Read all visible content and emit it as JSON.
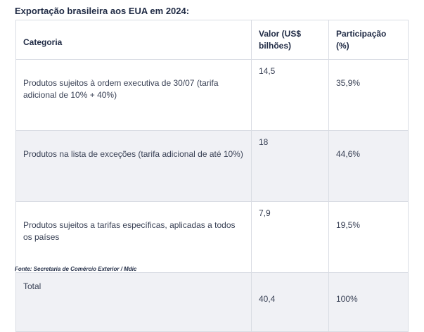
{
  "title": "Exportação brasileira aos EUA em 2024:",
  "table": {
    "headers": [
      "Categoria",
      "Valor (US$ bilhões)",
      "Participação (%)"
    ],
    "rows": [
      {
        "categoria": "Produtos sujeitos à ordem executiva de 30/07 (tarifa adicional de 10% + 40%)",
        "valor": "14,5",
        "participacao": "35,9%"
      },
      {
        "categoria": "Produtos na lista de exceções (tarifa adicional de até 10%)",
        "valor": "18",
        "participacao": "44,6%"
      },
      {
        "categoria": "Produtos sujeitos a tarifas específicas, aplicadas a todos os países",
        "valor": "7,9",
        "participacao": "19,5%"
      },
      {
        "categoria": "Total",
        "valor": "40,4",
        "participacao": "100%"
      }
    ]
  },
  "source": "Fonte: Secretaria de Comércio Exterior / Mdic"
}
